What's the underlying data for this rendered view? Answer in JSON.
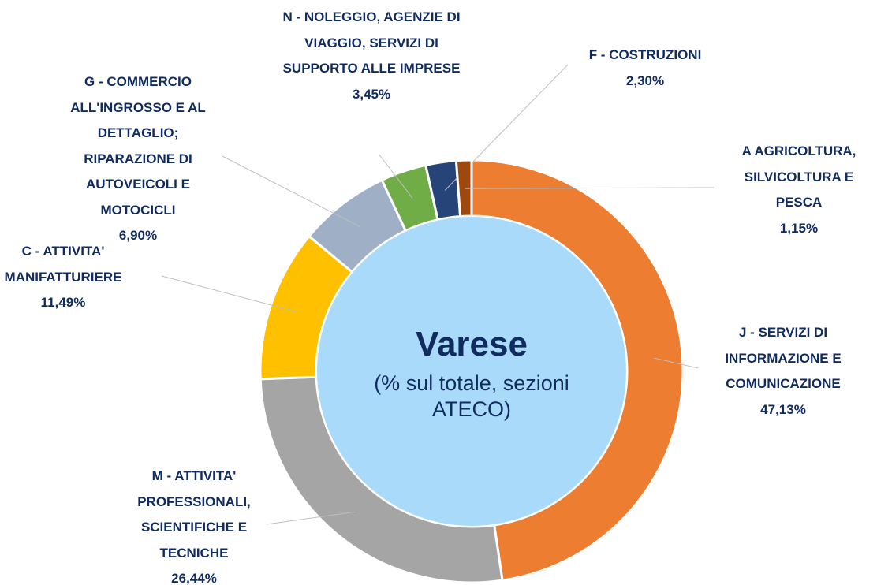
{
  "chart_data": {
    "type": "donut",
    "title": "Varese",
    "subtitle": "(% sul totale, sezioni ATECO)",
    "categories": [
      "J - SERVIZI DI INFORMAZIONE E COMUNICAZIONE",
      "M - ATTIVITA' PROFESSIONALI, SCIENTIFICHE E TECNICHE",
      "C - ATTIVITA' MANIFATTURIERE",
      "G - COMMERCIO ALL'INGROSSO E AL DETTAGLIO; RIPARAZIONE DI AUTOVEICOLI E MOTOCICLI",
      "N - NOLEGGIO, AGENZIE DI VIAGGIO, SERVIZI DI SUPPORTO ALLE IMPRESE",
      "F - COSTRUZIONI",
      "A AGRICOLTURA, SILVICOLTURA E PESCA"
    ],
    "values": [
      47.13,
      26.44,
      11.49,
      6.9,
      3.45,
      2.3,
      1.15
    ],
    "value_labels": [
      "47,13%",
      "26,44%",
      "11,49%",
      "6,90%",
      "3,45%",
      "2,30%",
      "1,15%"
    ],
    "colors": [
      "#ed7d31",
      "#a5a5a5",
      "#ffc000",
      "#9fafc6",
      "#70ad47",
      "#264478",
      "#9e480e"
    ]
  }
}
